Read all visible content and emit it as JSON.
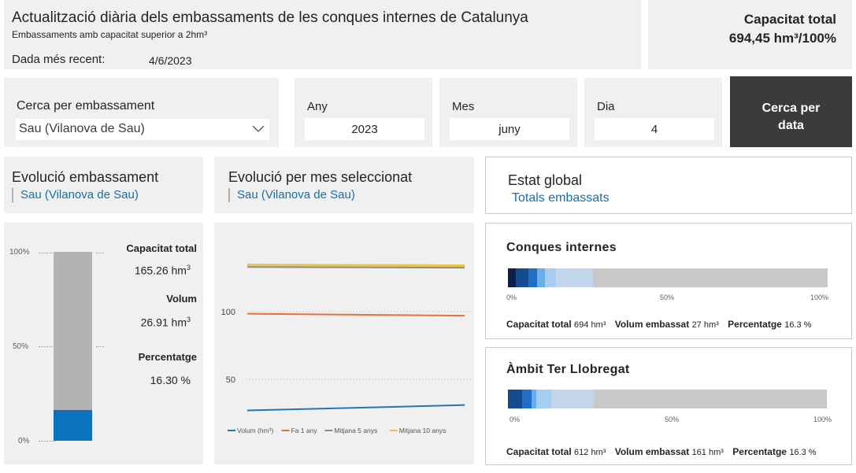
{
  "header": {
    "title": "Actualització diària dels embassaments de les conques internes de Catalunya",
    "subtitle": "Embassaments amb capacitat superior a 2hm³",
    "date_label": "Dada més recent:",
    "date_value": "4/6/2023"
  },
  "total_capacity": {
    "label": "Capacitat total",
    "value": "694,45 hm³/100%"
  },
  "filters": {
    "reservoir_label": "Cerca per embassament",
    "reservoir_value": "Sau (Vilanova de Sau)",
    "year_label": "Any",
    "year_value": "2023",
    "month_label": "Mes",
    "month_value": "juny",
    "day_label": "Dia",
    "day_value": "4",
    "search_button_line1": "Cerca per",
    "search_button_line2": "data"
  },
  "sections": {
    "evolution_title": "Evolució embassament",
    "evolution_subtitle": "Sau (Vilanova de Sau)",
    "monthly_title": "Evolució per mes seleccionat",
    "monthly_subtitle": "Sau (Vilanova de Sau)",
    "global_title": "Estat global",
    "global_subtitle": "Totals embassats"
  },
  "gauge": {
    "ticks": [
      "100%",
      "50%",
      "0%"
    ],
    "fill_percent": 16.3,
    "capacity_label": "Capacitat total",
    "capacity_value": "165.26 hm",
    "capacity_sup": "3",
    "volume_label": "Volum",
    "volume_value": "26.91 hm",
    "volume_sup": "3",
    "percentage_label": "Percentatge",
    "percentage_value": "16.30 %",
    "colors": {
      "bar": "#b3b3b3",
      "fill": "#0b72c0"
    }
  },
  "chart_data": {
    "type": "line",
    "title": "",
    "xlabel": "",
    "ylabel": "",
    "ylim": [
      20,
      150
    ],
    "yticks": [
      100,
      50
    ],
    "x": [
      1,
      2
    ],
    "series": [
      {
        "name": "Volum (hm³)",
        "color": "#1f77b4",
        "values": [
          27,
          31
        ]
      },
      {
        "name": "Fa 1 any",
        "color": "#e8703a",
        "values": [
          98.5,
          97
        ]
      },
      {
        "name": "Mitjana 5 anys",
        "color": "#8c8c8c",
        "values": [
          133,
          132.5
        ]
      },
      {
        "name": "Mitjana 10 anys",
        "color": "#e8c547",
        "values": [
          134.5,
          134
        ]
      }
    ],
    "legend": "bottom"
  },
  "cards": [
    {
      "title": "Conques internes",
      "segments": [
        {
          "percent": 2.5,
          "color": "#0a1f4e"
        },
        {
          "percent": 4.0,
          "color": "#144a8f"
        },
        {
          "percent": 2.5,
          "color": "#1f6fc4"
        },
        {
          "percent": 2.5,
          "color": "#6aaee8"
        },
        {
          "percent": 3.5,
          "color": "#a6cdf2"
        },
        {
          "percent": 11.5,
          "color": "#c3d5ea"
        }
      ],
      "axis": [
        "0%",
        "50%",
        "100%"
      ],
      "capacity_label": "Capacitat total",
      "capacity_value": "694 hm³",
      "volume_label": "Volum embassat",
      "volume_value": "27 hm³",
      "percentage_label": "Percentatge",
      "percentage_value": "16.3 %"
    },
    {
      "title": "Àmbit Ter Llobregat",
      "segments": [
        {
          "percent": 4.5,
          "color": "#144a8f"
        },
        {
          "percent": 3.0,
          "color": "#1f6fc4"
        },
        {
          "percent": 1.5,
          "color": "#6aaee8"
        },
        {
          "percent": 4.5,
          "color": "#a6cdf2"
        },
        {
          "percent": 13.5,
          "color": "#c3d5ea"
        }
      ],
      "axis": [
        "0%",
        "50%",
        "100%"
      ],
      "capacity_label": "Capacitat total",
      "capacity_value": "612 hm³",
      "volume_label": "Volum embassat",
      "volume_value": "161 hm³",
      "percentage_label": "Percentatge",
      "percentage_value": "16.3 %"
    }
  ]
}
